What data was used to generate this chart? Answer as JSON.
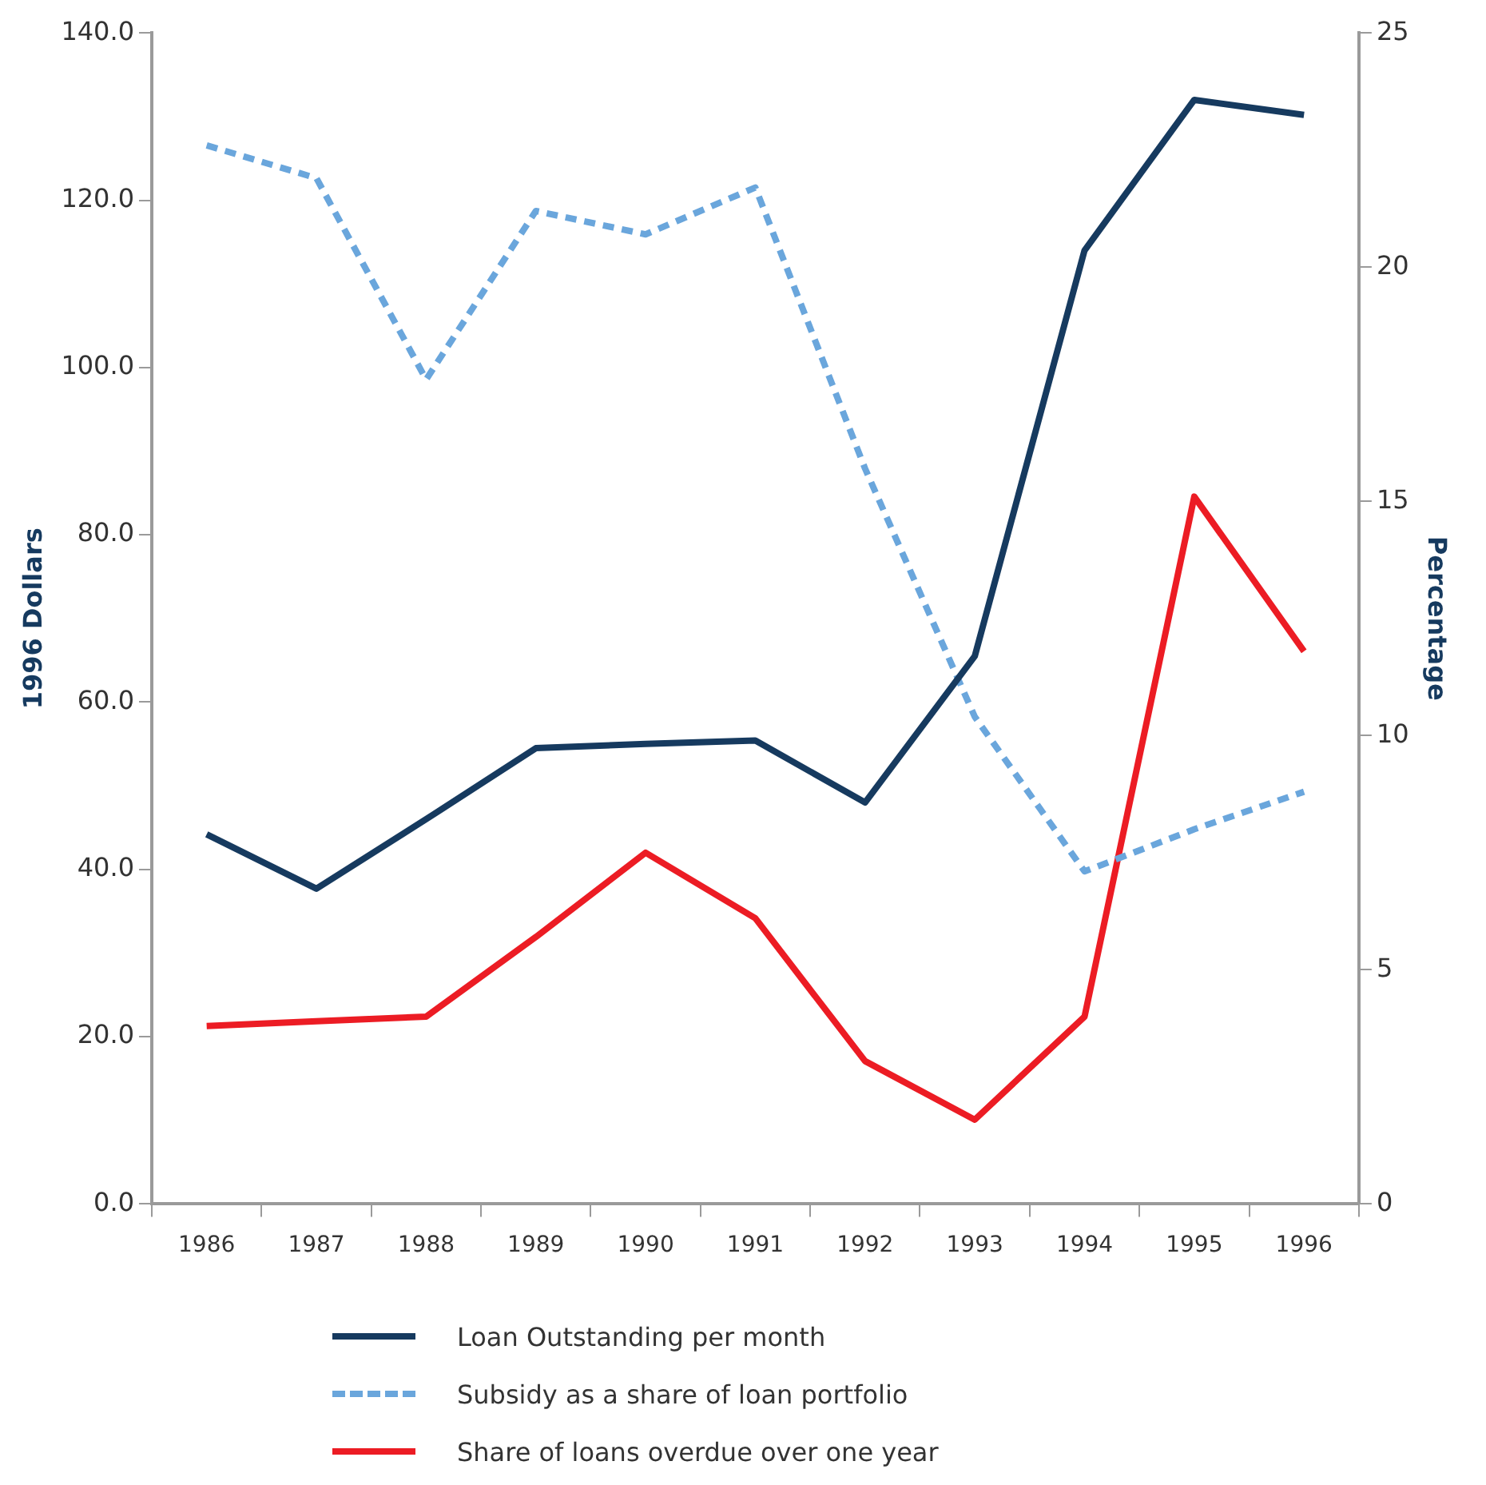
{
  "chart_data": {
    "type": "line",
    "ylabel": "1996 Dollars",
    "y2label": "Percentage",
    "categories": [
      "1986",
      "1987",
      "1988",
      "1989",
      "1990",
      "1991",
      "1992",
      "1993",
      "1994",
      "1995",
      "1996"
    ],
    "series": [
      {
        "name": "Loan Outstanding per month",
        "color": "#163a5f",
        "axis": "y",
        "line_style": "solid",
        "values": [
          44.2,
          37.7,
          46,
          54.5,
          55,
          55.4,
          48,
          65.5,
          114,
          132,
          130.2
        ]
      },
      {
        "name": "Subsidy as a share of loan portfolio",
        "color": "#6aa6dc",
        "axis": "y2",
        "line_style": "dashed",
        "values": [
          22.6,
          21.9,
          17.6,
          21.2,
          20.7,
          21.7,
          15.7,
          10.4,
          7.1,
          8.0,
          8.8
        ]
      },
      {
        "name": "Share of loans overdue over one year",
        "color": "#ec1c24",
        "axis": "y2",
        "line_style": "solid",
        "values": [
          3.8,
          3.9,
          4.0,
          5.7,
          7.5,
          6.1,
          3.05,
          1.8,
          4.0,
          15.1,
          11.8
        ]
      }
    ],
    "ylim": [
      0,
      140
    ],
    "yticks": [
      {
        "value": 0,
        "label": "0.0"
      },
      {
        "value": 20,
        "label": "20.0"
      },
      {
        "value": 40,
        "label": "40.0"
      },
      {
        "value": 60,
        "label": "60.0"
      },
      {
        "value": 80,
        "label": "80.0"
      },
      {
        "value": 100,
        "label": "100.0"
      },
      {
        "value": 120,
        "label": "120.0"
      },
      {
        "value": 140,
        "label": "140.0"
      }
    ],
    "y2lim": [
      0,
      25
    ],
    "y2ticks": [
      0,
      5,
      10,
      15,
      20,
      25
    ],
    "grid": false,
    "legend": "bottom",
    "marker": "none"
  }
}
